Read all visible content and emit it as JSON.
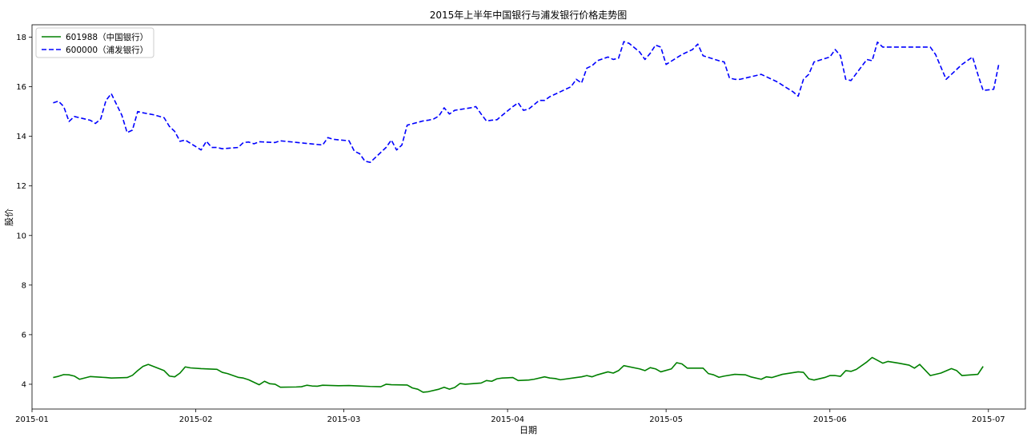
{
  "chart_data": {
    "type": "line",
    "title": "2015年上半年中国银行与浦发银行价格走势图",
    "xlabel": "日期",
    "ylabel": "股价",
    "xlim": [
      "2015-01-01",
      "2015-07-08"
    ],
    "ylim": [
      3,
      18.5
    ],
    "x_ticks": [
      "2015-01",
      "2015-02",
      "2015-03",
      "2015-04",
      "2015-05",
      "2015-06",
      "2015-07"
    ],
    "y_ticks": [
      4,
      6,
      8,
      10,
      12,
      14,
      16,
      18
    ],
    "grid": false,
    "legend": "top-left",
    "series": [
      {
        "name": "601988（中国银行）",
        "color": "#008000",
        "line_style": "solid",
        "points": [
          [
            "2015-01-05",
            4.27
          ],
          [
            "2015-01-06",
            4.32
          ],
          [
            "2015-01-07",
            4.39
          ],
          [
            "2015-01-08",
            4.38
          ],
          [
            "2015-01-09",
            4.33
          ],
          [
            "2015-01-10",
            4.2
          ],
          [
            "2015-01-12",
            4.31
          ],
          [
            "2015-01-15",
            4.27
          ],
          [
            "2015-01-16",
            4.25
          ],
          [
            "2015-01-19",
            4.27
          ],
          [
            "2015-01-20",
            4.36
          ],
          [
            "2015-01-21",
            4.55
          ],
          [
            "2015-01-22",
            4.72
          ],
          [
            "2015-01-23",
            4.8
          ],
          [
            "2015-01-26",
            4.55
          ],
          [
            "2015-01-27",
            4.33
          ],
          [
            "2015-01-28",
            4.3
          ],
          [
            "2015-01-29",
            4.45
          ],
          [
            "2015-01-30",
            4.7
          ],
          [
            "2015-01-31",
            4.66
          ],
          [
            "2015-02-02",
            4.63
          ],
          [
            "2015-02-05",
            4.6
          ],
          [
            "2015-02-06",
            4.48
          ],
          [
            "2015-02-07",
            4.43
          ],
          [
            "2015-02-09",
            4.28
          ],
          [
            "2015-02-10",
            4.25
          ],
          [
            "2015-02-11",
            4.18
          ],
          [
            "2015-02-13",
            3.98
          ],
          [
            "2015-02-14",
            4.12
          ],
          [
            "2015-02-15",
            4.02
          ],
          [
            "2015-02-16",
            4.0
          ],
          [
            "2015-02-17",
            3.88
          ],
          [
            "2015-02-20",
            3.89
          ],
          [
            "2015-02-21",
            3.9
          ],
          [
            "2015-02-22",
            3.96
          ],
          [
            "2015-02-23",
            3.93
          ],
          [
            "2015-02-24",
            3.92
          ],
          [
            "2015-02-25",
            3.96
          ],
          [
            "2015-02-28",
            3.94
          ],
          [
            "2015-03-02",
            3.95
          ],
          [
            "2015-03-04",
            3.93
          ],
          [
            "2015-03-06",
            3.91
          ],
          [
            "2015-03-08",
            3.9
          ],
          [
            "2015-03-09",
            4.0
          ],
          [
            "2015-03-10",
            3.98
          ],
          [
            "2015-03-13",
            3.97
          ],
          [
            "2015-03-14",
            3.85
          ],
          [
            "2015-03-15",
            3.8
          ],
          [
            "2015-03-16",
            3.68
          ],
          [
            "2015-03-17",
            3.7
          ],
          [
            "2015-03-19",
            3.8
          ],
          [
            "2015-03-20",
            3.88
          ],
          [
            "2015-03-21",
            3.8
          ],
          [
            "2015-03-22",
            3.87
          ],
          [
            "2015-03-23",
            4.03
          ],
          [
            "2015-03-24",
            4.0
          ],
          [
            "2015-03-27",
            4.05
          ],
          [
            "2015-03-28",
            4.15
          ],
          [
            "2015-03-29",
            4.12
          ],
          [
            "2015-03-30",
            4.22
          ],
          [
            "2015-03-31",
            4.25
          ],
          [
            "2015-04-02",
            4.27
          ],
          [
            "2015-04-03",
            4.15
          ],
          [
            "2015-04-05",
            4.17
          ],
          [
            "2015-04-06",
            4.2
          ],
          [
            "2015-04-08",
            4.3
          ],
          [
            "2015-04-09",
            4.25
          ],
          [
            "2015-04-10",
            4.23
          ],
          [
            "2015-04-11",
            4.18
          ],
          [
            "2015-04-14",
            4.27
          ],
          [
            "2015-04-15",
            4.3
          ],
          [
            "2015-04-16",
            4.35
          ],
          [
            "2015-04-17",
            4.3
          ],
          [
            "2015-04-18",
            4.38
          ],
          [
            "2015-04-20",
            4.5
          ],
          [
            "2015-04-21",
            4.45
          ],
          [
            "2015-04-22",
            4.55
          ],
          [
            "2015-04-23",
            4.75
          ],
          [
            "2015-04-26",
            4.62
          ],
          [
            "2015-04-27",
            4.55
          ],
          [
            "2015-04-28",
            4.67
          ],
          [
            "2015-04-29",
            4.62
          ],
          [
            "2015-04-30",
            4.5
          ],
          [
            "2015-05-02",
            4.62
          ],
          [
            "2015-05-03",
            4.87
          ],
          [
            "2015-05-04",
            4.82
          ],
          [
            "2015-05-05",
            4.65
          ],
          [
            "2015-05-08",
            4.65
          ],
          [
            "2015-05-09",
            4.43
          ],
          [
            "2015-05-10",
            4.38
          ],
          [
            "2015-05-11",
            4.28
          ],
          [
            "2015-05-12",
            4.33
          ],
          [
            "2015-05-14",
            4.4
          ],
          [
            "2015-05-16",
            4.38
          ],
          [
            "2015-05-17",
            4.3
          ],
          [
            "2015-05-19",
            4.2
          ],
          [
            "2015-05-20",
            4.3
          ],
          [
            "2015-05-21",
            4.27
          ],
          [
            "2015-05-23",
            4.4
          ],
          [
            "2015-05-26",
            4.5
          ],
          [
            "2015-05-27",
            4.48
          ],
          [
            "2015-05-28",
            4.22
          ],
          [
            "2015-05-29",
            4.17
          ],
          [
            "2015-05-31",
            4.27
          ],
          [
            "2015-06-01",
            4.35
          ],
          [
            "2015-06-02",
            4.35
          ],
          [
            "2015-06-03",
            4.32
          ],
          [
            "2015-06-04",
            4.55
          ],
          [
            "2015-06-05",
            4.52
          ],
          [
            "2015-06-06",
            4.6
          ],
          [
            "2015-06-08",
            4.9
          ],
          [
            "2015-06-09",
            5.08
          ],
          [
            "2015-06-11",
            4.85
          ],
          [
            "2015-06-12",
            4.92
          ],
          [
            "2015-06-14",
            4.85
          ],
          [
            "2015-06-16",
            4.77
          ],
          [
            "2015-06-17",
            4.65
          ],
          [
            "2015-06-18",
            4.8
          ],
          [
            "2015-06-20",
            4.35
          ],
          [
            "2015-06-22",
            4.45
          ],
          [
            "2015-06-24",
            4.63
          ],
          [
            "2015-06-25",
            4.55
          ],
          [
            "2015-06-26",
            4.35
          ],
          [
            "2015-06-29",
            4.4
          ],
          [
            "2015-06-30",
            4.72
          ]
        ]
      },
      {
        "name": "600000（浦发银行）",
        "color": "#0000ff",
        "line_style": "dashed",
        "points": [
          [
            "2015-01-05",
            15.35
          ],
          [
            "2015-01-06",
            15.42
          ],
          [
            "2015-01-07",
            15.2
          ],
          [
            "2015-01-08",
            14.6
          ],
          [
            "2015-01-09",
            14.8
          ],
          [
            "2015-01-12",
            14.65
          ],
          [
            "2015-01-13",
            14.52
          ],
          [
            "2015-01-14",
            14.7
          ],
          [
            "2015-01-15",
            15.45
          ],
          [
            "2015-01-16",
            15.72
          ],
          [
            "2015-01-18",
            14.85
          ],
          [
            "2015-01-19",
            14.15
          ],
          [
            "2015-01-20",
            14.25
          ],
          [
            "2015-01-21",
            15.0
          ],
          [
            "2015-01-22",
            14.95
          ],
          [
            "2015-01-24",
            14.87
          ],
          [
            "2015-01-26",
            14.75
          ],
          [
            "2015-01-27",
            14.4
          ],
          [
            "2015-01-28",
            14.2
          ],
          [
            "2015-01-29",
            13.8
          ],
          [
            "2015-01-30",
            13.85
          ],
          [
            "2015-02-02",
            13.45
          ],
          [
            "2015-02-03",
            13.8
          ],
          [
            "2015-02-04",
            13.55
          ],
          [
            "2015-02-05",
            13.55
          ],
          [
            "2015-02-06",
            13.5
          ],
          [
            "2015-02-09",
            13.55
          ],
          [
            "2015-02-10",
            13.75
          ],
          [
            "2015-02-11",
            13.77
          ],
          [
            "2015-02-12",
            13.7
          ],
          [
            "2015-02-13",
            13.78
          ],
          [
            "2015-02-16",
            13.75
          ],
          [
            "2015-02-17",
            13.82
          ],
          [
            "2015-02-25",
            13.65
          ],
          [
            "2015-02-26",
            13.95
          ],
          [
            "2015-02-27",
            13.88
          ],
          [
            "2015-03-02",
            13.82
          ],
          [
            "2015-03-03",
            13.4
          ],
          [
            "2015-03-04",
            13.3
          ],
          [
            "2015-03-05",
            13.0
          ],
          [
            "2015-03-06",
            12.95
          ],
          [
            "2015-03-09",
            13.55
          ],
          [
            "2015-03-10",
            13.85
          ],
          [
            "2015-03-11",
            13.45
          ],
          [
            "2015-03-12",
            13.65
          ],
          [
            "2015-03-13",
            14.45
          ],
          [
            "2015-03-16",
            14.62
          ],
          [
            "2015-03-17",
            14.65
          ],
          [
            "2015-03-18",
            14.7
          ],
          [
            "2015-03-19",
            14.82
          ],
          [
            "2015-03-20",
            15.15
          ],
          [
            "2015-03-21",
            14.9
          ],
          [
            "2015-03-22",
            15.05
          ],
          [
            "2015-03-25",
            15.15
          ],
          [
            "2015-03-26",
            15.2
          ],
          [
            "2015-03-27",
            14.9
          ],
          [
            "2015-03-28",
            14.62
          ],
          [
            "2015-03-29",
            14.65
          ],
          [
            "2015-03-30",
            14.67
          ],
          [
            "2015-03-31",
            14.85
          ],
          [
            "2015-04-02",
            15.2
          ],
          [
            "2015-04-03",
            15.35
          ],
          [
            "2015-04-04",
            15.05
          ],
          [
            "2015-04-05",
            15.1
          ],
          [
            "2015-04-07",
            15.45
          ],
          [
            "2015-04-08",
            15.45
          ],
          [
            "2015-04-09",
            15.6
          ],
          [
            "2015-04-10",
            15.7
          ],
          [
            "2015-04-11",
            15.8
          ],
          [
            "2015-04-13",
            16.0
          ],
          [
            "2015-04-14",
            16.3
          ],
          [
            "2015-04-15",
            16.15
          ],
          [
            "2015-04-16",
            16.75
          ],
          [
            "2015-04-17",
            16.85
          ],
          [
            "2015-04-18",
            17.05
          ],
          [
            "2015-04-20",
            17.2
          ],
          [
            "2015-04-21",
            17.1
          ],
          [
            "2015-04-22",
            17.15
          ],
          [
            "2015-04-23",
            17.82
          ],
          [
            "2015-04-24",
            17.75
          ],
          [
            "2015-04-26",
            17.4
          ],
          [
            "2015-04-27",
            17.1
          ],
          [
            "2015-04-28",
            17.35
          ],
          [
            "2015-04-29",
            17.68
          ],
          [
            "2015-04-30",
            17.6
          ],
          [
            "2015-05-01",
            16.9
          ],
          [
            "2015-05-04",
            17.3
          ],
          [
            "2015-05-05",
            17.4
          ],
          [
            "2015-05-06",
            17.5
          ],
          [
            "2015-05-07",
            17.72
          ],
          [
            "2015-05-08",
            17.25
          ],
          [
            "2015-05-11",
            17.05
          ],
          [
            "2015-05-12",
            17.0
          ],
          [
            "2015-05-13",
            16.35
          ],
          [
            "2015-05-14",
            16.3
          ],
          [
            "2015-05-15",
            16.3
          ],
          [
            "2015-05-18",
            16.45
          ],
          [
            "2015-05-19",
            16.5
          ],
          [
            "2015-05-21",
            16.3
          ],
          [
            "2015-05-22",
            16.2
          ],
          [
            "2015-05-25",
            15.8
          ],
          [
            "2015-05-26",
            15.62
          ],
          [
            "2015-05-27",
            16.3
          ],
          [
            "2015-05-28",
            16.5
          ],
          [
            "2015-05-29",
            17.0
          ],
          [
            "2015-06-01",
            17.2
          ],
          [
            "2015-06-02",
            17.5
          ],
          [
            "2015-06-03",
            17.25
          ],
          [
            "2015-06-04",
            16.3
          ],
          [
            "2015-06-05",
            16.25
          ],
          [
            "2015-06-08",
            17.1
          ],
          [
            "2015-06-09",
            17.05
          ],
          [
            "2015-06-10",
            17.8
          ],
          [
            "2015-06-11",
            17.6
          ],
          [
            "2015-06-20",
            17.6
          ],
          [
            "2015-06-21",
            17.3
          ],
          [
            "2015-06-23",
            16.3
          ],
          [
            "2015-06-26",
            16.9
          ],
          [
            "2015-06-28",
            17.2
          ],
          [
            "2015-06-29",
            16.5
          ],
          [
            "2015-06-30",
            15.85
          ],
          [
            "2015-07-02",
            15.9
          ],
          [
            "2015-07-03",
            16.95
          ]
        ]
      }
    ]
  }
}
